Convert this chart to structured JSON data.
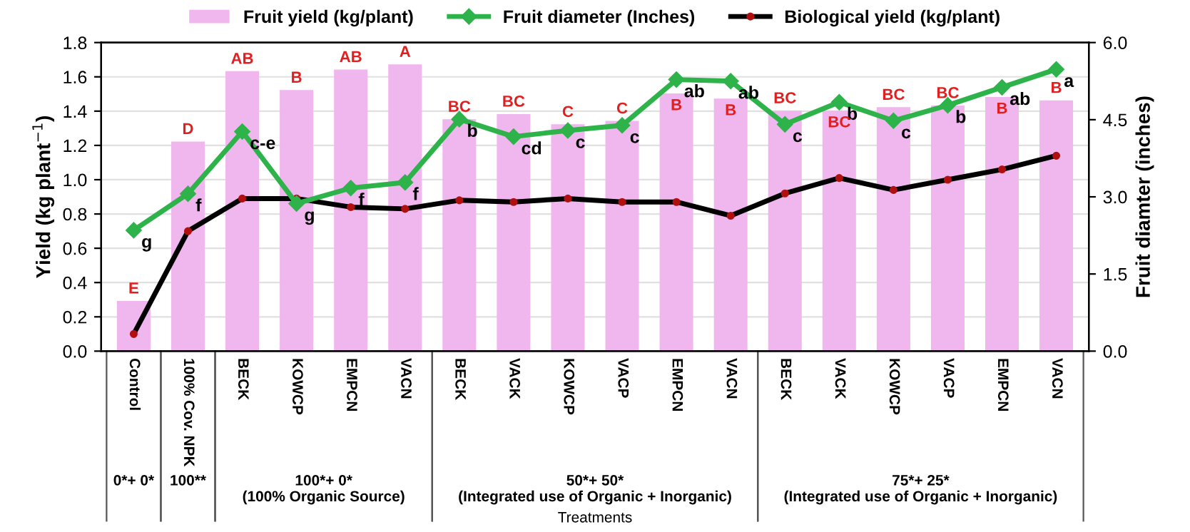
{
  "chart_data": {
    "type": "bar",
    "xlabel": "Treatments",
    "ylabel": "Yield (kg plant$^{−1}$)",
    "y2label": "Fruit diamter (inches)",
    "categories": [
      "Control",
      "100% Cov. NPK",
      "BECK",
      "KOWCP",
      "EMPCN",
      "VACN",
      "BECK",
      "VACK",
      "KOWCP",
      "VACP",
      "EMPCN",
      "VACN",
      "BECK",
      "VACK",
      "KOWCP",
      "VACP",
      "EMPCN",
      "VACN"
    ],
    "series": [
      {
        "name": "Fruit yield (kg/plant)",
        "color": "#f0b6ee",
        "values": [
          0.29,
          1.22,
          1.63,
          1.52,
          1.64,
          1.67,
          1.35,
          1.38,
          1.32,
          1.34,
          1.5,
          1.47,
          1.4,
          1.4,
          1.42,
          1.43,
          1.48,
          1.46
        ],
        "value_labels": [
          "E",
          "D",
          "AB",
          "B",
          "AB",
          "A",
          "BC",
          "BC",
          "C",
          "C",
          "B",
          "B",
          "BC",
          "BC",
          "BC",
          "BC",
          "B",
          "B"
        ]
      },
      {
        "name": "Fruit diameter (Inches)",
        "type": "line",
        "axis": "y2",
        "color": "#2db34a",
        "marker": "diamond",
        "values": [
          2.35,
          3.06,
          4.27,
          2.87,
          3.17,
          3.28,
          4.51,
          4.17,
          4.29,
          4.39,
          5.28,
          5.25,
          4.41,
          4.84,
          4.48,
          4.78,
          5.13,
          5.48
        ],
        "value_labels": [
          "g",
          "f",
          "c-e",
          "g",
          "f",
          "f",
          "b",
          "cd",
          "c",
          "c",
          "ab",
          "ab",
          "c",
          "b",
          "c",
          "b",
          "ab",
          "a"
        ]
      },
      {
        "name": "Biological yield (kg/plant)",
        "type": "line",
        "color": "#000000",
        "marker": "circle",
        "values": [
          0.1,
          0.7,
          0.89,
          0.89,
          0.84,
          0.83,
          0.88,
          0.87,
          0.89,
          0.87,
          0.87,
          0.79,
          0.92,
          1.01,
          0.94,
          1.0,
          1.06,
          1.14
        ]
      }
    ],
    "annotations": [
      "0*+ 0*",
      "100**",
      "100*+ 0*\n(100% Organic Source)",
      "50*+ 50*\n(Integrated use of Organic + Inorganic)",
      "75*+ 25*\n(Integrated use of Organic + Inorganic)"
    ],
    "ylim": [
      0,
      1.8
    ],
    "yticks": [
      {
        "value": 0,
        "label": "0.0"
      },
      0.2,
      0.4,
      0.6,
      0.8,
      {
        "value": 1.0,
        "label": "1.0"
      },
      1.2,
      1.4,
      1.6,
      1.8
    ],
    "y2lim": [
      0,
      6
    ],
    "y2ticks": [
      {
        "value": 0,
        "label": "0.0"
      },
      1.5,
      {
        "value": 3,
        "label": "3.0"
      },
      4.5,
      {
        "value": 6,
        "label": "6.0"
      }
    ],
    "grid": "y",
    "legend": "top",
    "line_style": "solid"
  }
}
